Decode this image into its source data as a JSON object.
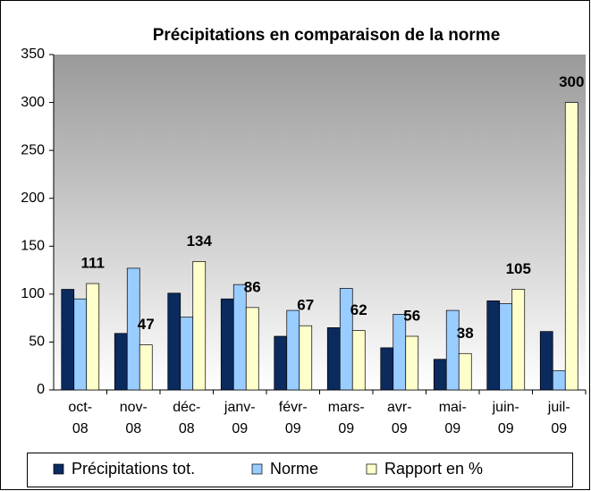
{
  "chart_data": {
    "type": "bar",
    "title": "Précipitations en comparaison de la norme",
    "categories": [
      "oct-08",
      "nov-08",
      "déc-08",
      "janv-09",
      "févr-09",
      "mars-09",
      "avr-09",
      "mai-09",
      "juin-09",
      "juil-09"
    ],
    "series": [
      {
        "name": "Précipitations tot.",
        "color": "#0b2a5e",
        "values": [
          105,
          59,
          101,
          95,
          56,
          65,
          44,
          32,
          93,
          61
        ]
      },
      {
        "name": "Norme",
        "color": "#99ccff",
        "values": [
          95,
          127,
          76,
          110,
          83,
          106,
          79,
          83,
          90,
          20
        ]
      },
      {
        "name": "Rapport en %",
        "color": "#ffffcc",
        "values": [
          111,
          47,
          134,
          86,
          67,
          62,
          56,
          38,
          105,
          300
        ],
        "data_labels": true
      }
    ],
    "ylim": [
      0,
      350
    ],
    "yticks": [
      0,
      50,
      100,
      150,
      200,
      250,
      300,
      350
    ],
    "grid": false,
    "legend": "bottom"
  }
}
